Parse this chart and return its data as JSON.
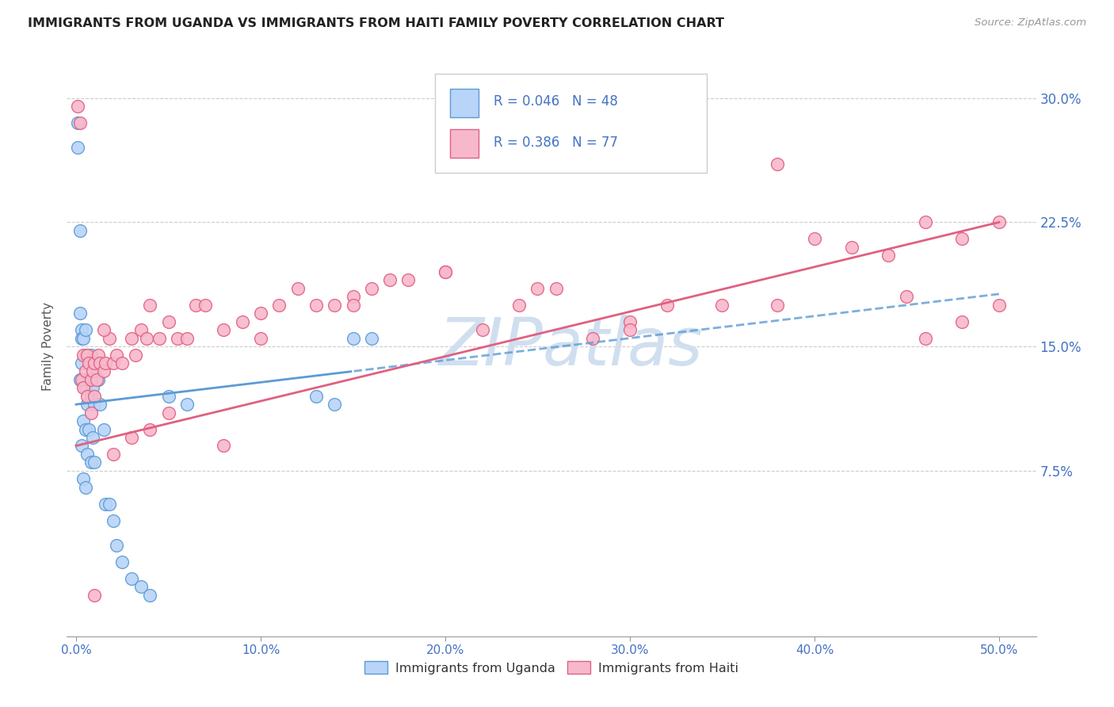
{
  "title": "IMMIGRANTS FROM UGANDA VS IMMIGRANTS FROM HAITI FAMILY POVERTY CORRELATION CHART",
  "source": "Source: ZipAtlas.com",
  "ylabel": "Family Poverty",
  "ytick_values": [
    0.075,
    0.15,
    0.225,
    0.3
  ],
  "ytick_labels": [
    "7.5%",
    "15.0%",
    "22.5%",
    "30.0%"
  ],
  "xtick_values": [
    0.0,
    0.1,
    0.2,
    0.3,
    0.4,
    0.5
  ],
  "xtick_labels": [
    "0.0%",
    "10.0%",
    "20.0%",
    "30.0%",
    "40.0%",
    "50.0%"
  ],
  "xlim": [
    -0.005,
    0.52
  ],
  "ylim": [
    -0.025,
    0.325
  ],
  "color_uganda_face": "#b8d4f8",
  "color_uganda_edge": "#5b9bd5",
  "color_haiti_face": "#f8b8cc",
  "color_haiti_edge": "#e06080",
  "line_color_uganda": "#5b9bd5",
  "line_color_haiti": "#e06080",
  "watermark": "ZIPatlas",
  "watermark_color": "#d0dff0",
  "legend_text_color": "#4472c4",
  "tick_color": "#4472c4",
  "grid_color": "#cccccc",
  "uganda_x": [
    0.001,
    0.001,
    0.002,
    0.002,
    0.002,
    0.003,
    0.003,
    0.003,
    0.003,
    0.004,
    0.004,
    0.004,
    0.004,
    0.005,
    0.005,
    0.005,
    0.005,
    0.005,
    0.006,
    0.006,
    0.006,
    0.007,
    0.007,
    0.008,
    0.008,
    0.008,
    0.009,
    0.009,
    0.01,
    0.01,
    0.01,
    0.012,
    0.013,
    0.015,
    0.016,
    0.018,
    0.02,
    0.022,
    0.025,
    0.03,
    0.035,
    0.04,
    0.05,
    0.06,
    0.13,
    0.14,
    0.15,
    0.16
  ],
  "uganda_y": [
    0.285,
    0.27,
    0.22,
    0.17,
    0.13,
    0.16,
    0.155,
    0.14,
    0.09,
    0.155,
    0.13,
    0.105,
    0.07,
    0.16,
    0.145,
    0.125,
    0.1,
    0.065,
    0.145,
    0.115,
    0.085,
    0.13,
    0.1,
    0.145,
    0.12,
    0.08,
    0.125,
    0.095,
    0.135,
    0.115,
    0.08,
    0.13,
    0.115,
    0.1,
    0.055,
    0.055,
    0.045,
    0.03,
    0.02,
    0.01,
    0.005,
    0.0,
    0.12,
    0.115,
    0.12,
    0.115,
    0.155,
    0.155
  ],
  "haiti_x": [
    0.001,
    0.002,
    0.003,
    0.004,
    0.004,
    0.005,
    0.006,
    0.006,
    0.007,
    0.008,
    0.008,
    0.009,
    0.01,
    0.01,
    0.011,
    0.012,
    0.013,
    0.015,
    0.016,
    0.018,
    0.02,
    0.022,
    0.025,
    0.03,
    0.032,
    0.035,
    0.038,
    0.04,
    0.045,
    0.05,
    0.055,
    0.06,
    0.065,
    0.07,
    0.08,
    0.09,
    0.1,
    0.11,
    0.12,
    0.13,
    0.14,
    0.15,
    0.16,
    0.17,
    0.18,
    0.2,
    0.22,
    0.24,
    0.26,
    0.28,
    0.3,
    0.32,
    0.35,
    0.38,
    0.4,
    0.42,
    0.44,
    0.46,
    0.48,
    0.5,
    0.45,
    0.38,
    0.3,
    0.25,
    0.2,
    0.15,
    0.1,
    0.08,
    0.05,
    0.04,
    0.03,
    0.02,
    0.015,
    0.01,
    0.5,
    0.48,
    0.46
  ],
  "haiti_y": [
    0.295,
    0.285,
    0.13,
    0.145,
    0.125,
    0.135,
    0.145,
    0.12,
    0.14,
    0.13,
    0.11,
    0.135,
    0.14,
    0.12,
    0.13,
    0.145,
    0.14,
    0.135,
    0.14,
    0.155,
    0.14,
    0.145,
    0.14,
    0.155,
    0.145,
    0.16,
    0.155,
    0.175,
    0.155,
    0.165,
    0.155,
    0.155,
    0.175,
    0.175,
    0.16,
    0.165,
    0.17,
    0.175,
    0.185,
    0.175,
    0.175,
    0.18,
    0.185,
    0.19,
    0.19,
    0.195,
    0.16,
    0.175,
    0.185,
    0.155,
    0.165,
    0.175,
    0.175,
    0.26,
    0.215,
    0.21,
    0.205,
    0.225,
    0.215,
    0.225,
    0.18,
    0.175,
    0.16,
    0.185,
    0.195,
    0.175,
    0.155,
    0.09,
    0.11,
    0.1,
    0.095,
    0.085,
    0.16,
    0.0,
    0.175,
    0.165,
    0.155
  ]
}
